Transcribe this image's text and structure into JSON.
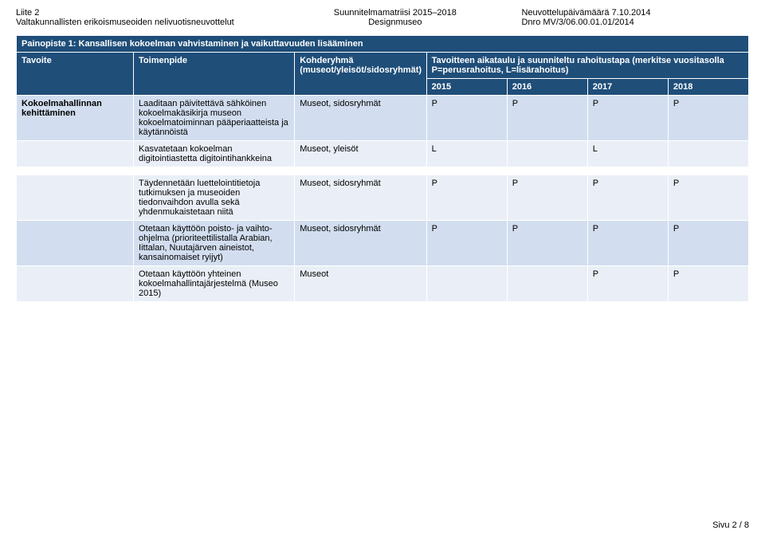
{
  "header": {
    "left_line1": "Liite 2",
    "left_line2": "Valtakunnallisten erikoismuseoiden nelivuotisneuvottelut",
    "center_line1": "Suunnitelmamatriisi 2015–2018",
    "center_line2": "Designmuseo",
    "right_line1": "Neuvottelupäivämäärä 7.10.2014",
    "right_line2": "Dnro MV/3/06.00.01.01/2014"
  },
  "section_title": "Painopiste 1: Kansallisen kokoelman vahvistaminen ja vaikuttavuuden lisääminen",
  "columns": {
    "goal": "Tavoite",
    "action": "Toimenpide",
    "target": "Kohderyhmä (museot/yleisöt/sidosryhmät)",
    "schedule": "Tavoitteen aikataulu ja suunniteltu rahoitustapa (merkitse vuositasolla P=perusrahoitus, L=lisärahoitus)"
  },
  "years": [
    "2015",
    "2016",
    "2017",
    "2018"
  ],
  "rows": [
    {
      "goal": "Kokoelmahallinnan kehittäminen",
      "action": "Laaditaan päivitettävä sähköinen kokoelmakäsikirja museon kokoelmatoiminnan pääperiaatteista ja käytännöistä",
      "target": "Museot, sidosryhmät",
      "cells": [
        "P",
        "P",
        "P",
        "P"
      ],
      "cls": "odd"
    },
    {
      "goal": "",
      "action": "Kasvatetaan kokoelman digitointiastetta digitointihankkeina",
      "target": "Museot, yleisöt",
      "cells": [
        "L",
        "",
        "L",
        ""
      ],
      "cls": "even"
    },
    {
      "spacer": true
    },
    {
      "goal": "",
      "action": "Täydennetään luettelointitietoja tutkimuksen ja museoiden tiedonvaihdon avulla sekä yhdenmukaistetaan niitä",
      "target": "Museot, sidosryhmät",
      "cells": [
        "P",
        "P",
        "P",
        "P"
      ],
      "cls": "even"
    },
    {
      "goal": "",
      "action": "Otetaan käyttöön poisto- ja vaihto-ohjelma (prioriteettilistalla Arabian, Iittalan, Nuutajärven aineistot, kansainomaiset ryijyt)",
      "target": "Museot, sidosryhmät",
      "cells": [
        "P",
        "P",
        "P",
        "P"
      ],
      "cls": "odd"
    },
    {
      "goal": "",
      "action": "Otetaan käyttöön yhteinen kokoelmahallintajärjestelmä (Museo 2015)",
      "target": "Museot",
      "cells": [
        "",
        "",
        "P",
        "P"
      ],
      "cls": "even"
    }
  ],
  "footer": "Sivu 2 / 8"
}
